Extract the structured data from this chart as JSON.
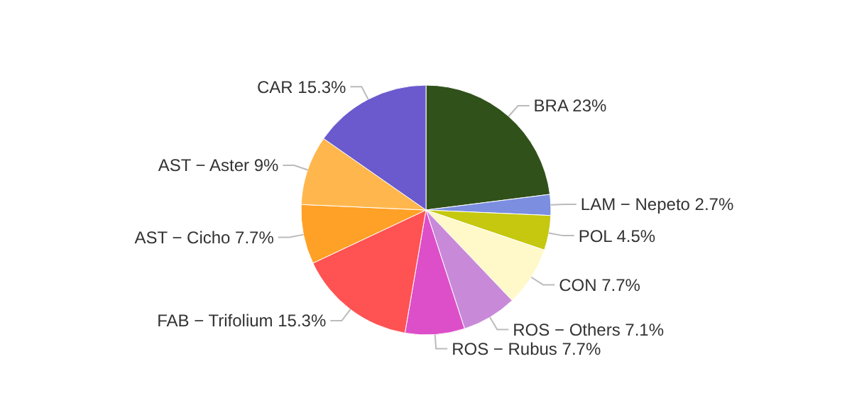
{
  "chart_data": {
    "type": "pie",
    "categories": [
      "BRA",
      "LAM − Nepeto",
      "POL",
      "CON",
      "ROS − Others",
      "ROS − Rubus",
      "FAB − Trifolium",
      "AST − Cicho",
      "AST − Aster",
      "CAR"
    ],
    "values": [
      23,
      2.7,
      4.5,
      7.7,
      7.1,
      7.7,
      15.3,
      7.7,
      9,
      15.3
    ],
    "value_labels": [
      "23%",
      "2.7%",
      "4.5%",
      "7.7%",
      "7.1%",
      "7.7%",
      "15.3%",
      "7.7%",
      "9%",
      "15.3%"
    ],
    "colors": [
      "#31511b",
      "#7b8ee0",
      "#c5c80e",
      "#fff8c8",
      "#c88ad8",
      "#dd4fc8",
      "#ff5252",
      "#ffa126",
      "#ffb74d",
      "#6a5acd"
    ]
  }
}
